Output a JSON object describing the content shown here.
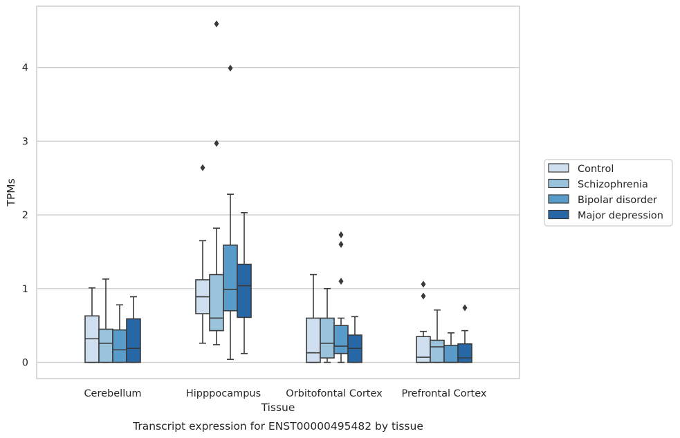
{
  "chart_data": {
    "type": "box",
    "title": "",
    "xlabel": "Tissue",
    "ylabel": "TPMs",
    "caption": "Transcript expression for ENST00000495482 by tissue",
    "ylim": [
      -0.22,
      4.83
    ],
    "yticks": [
      0,
      1,
      2,
      3,
      4
    ],
    "grid": "horizontal",
    "legend_position": "right",
    "categories": [
      "Cerebellum",
      "Hipppocampus",
      "Orbitofontal Cortex",
      "Prefrontal Cortex"
    ],
    "series": [
      {
        "name": "Control",
        "color": "#d0dfef",
        "boxes": [
          {
            "min": 0.0,
            "q1": 0.0,
            "median": 0.32,
            "q3": 0.63,
            "max": 1.01,
            "outliers": []
          },
          {
            "min": 0.26,
            "q1": 0.66,
            "median": 0.89,
            "q3": 1.12,
            "max": 1.65,
            "outliers": [
              2.64
            ]
          },
          {
            "min": 0.0,
            "q1": 0.0,
            "median": 0.13,
            "q3": 0.6,
            "max": 1.19,
            "outliers": []
          },
          {
            "min": 0.0,
            "q1": 0.0,
            "median": 0.07,
            "q3": 0.35,
            "max": 0.42,
            "outliers": [
              0.9,
              1.06
            ]
          }
        ]
      },
      {
        "name": "Schizophrenia",
        "color": "#9ac3dc",
        "boxes": [
          {
            "min": 0.0,
            "q1": 0.0,
            "median": 0.26,
            "q3": 0.45,
            "max": 1.13,
            "outliers": []
          },
          {
            "min": 0.24,
            "q1": 0.43,
            "median": 0.6,
            "q3": 1.19,
            "max": 1.82,
            "outliers": [
              2.97,
              4.59
            ]
          },
          {
            "min": 0.0,
            "q1": 0.06,
            "median": 0.26,
            "q3": 0.6,
            "max": 1.0,
            "outliers": []
          },
          {
            "min": 0.0,
            "q1": 0.0,
            "median": 0.21,
            "q3": 0.3,
            "max": 0.71,
            "outliers": []
          }
        ]
      },
      {
        "name": "Bipolar disorder",
        "color": "#5a9cc9",
        "boxes": [
          {
            "min": 0.0,
            "q1": 0.0,
            "median": 0.17,
            "q3": 0.44,
            "max": 0.78,
            "outliers": []
          },
          {
            "min": 0.04,
            "q1": 0.7,
            "median": 0.99,
            "q3": 1.59,
            "max": 2.28,
            "outliers": [
              3.99
            ]
          },
          {
            "min": 0.0,
            "q1": 0.12,
            "median": 0.22,
            "q3": 0.5,
            "max": 0.6,
            "outliers": [
              1.1,
              1.6,
              1.73
            ]
          },
          {
            "min": 0.0,
            "q1": 0.0,
            "median": 0.0,
            "q3": 0.23,
            "max": 0.4,
            "outliers": []
          }
        ]
      },
      {
        "name": "Major depression",
        "color": "#2767a5",
        "boxes": [
          {
            "min": 0.0,
            "q1": 0.0,
            "median": 0.19,
            "q3": 0.59,
            "max": 0.89,
            "outliers": []
          },
          {
            "min": 0.12,
            "q1": 0.61,
            "median": 1.04,
            "q3": 1.33,
            "max": 2.03,
            "outliers": []
          },
          {
            "min": 0.0,
            "q1": 0.0,
            "median": 0.19,
            "q3": 0.37,
            "max": 0.62,
            "outliers": []
          },
          {
            "min": 0.0,
            "q1": 0.0,
            "median": 0.06,
            "q3": 0.25,
            "max": 0.43,
            "outliers": [
              0.74
            ]
          }
        ]
      }
    ]
  }
}
